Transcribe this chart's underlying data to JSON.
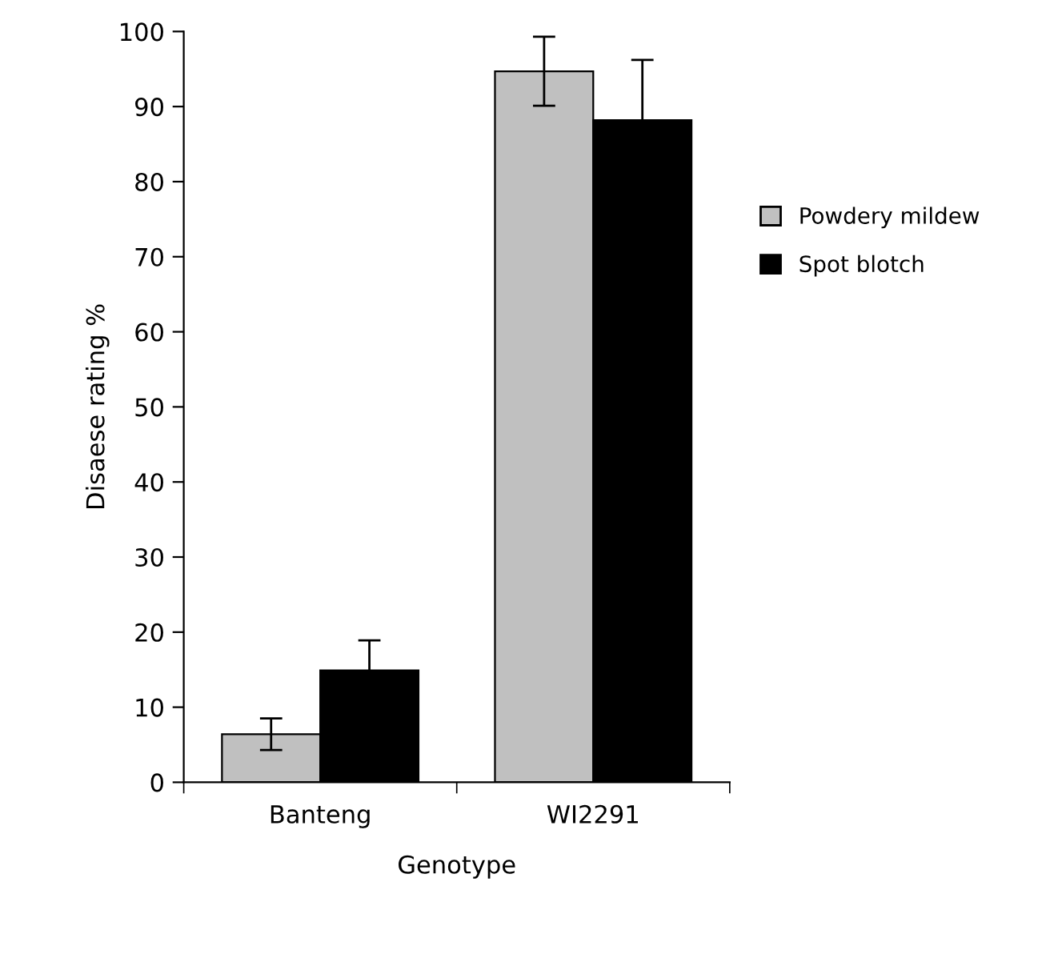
{
  "chart_data": {
    "type": "bar",
    "xlabel": "Genotype",
    "ylabel": "Disaese rating %",
    "categories": [
      "Banteng",
      "WI2291"
    ],
    "series": [
      {
        "name": "Powdery mildew",
        "color": "#c0c0c0",
        "values": [
          6.4,
          94.7
        ],
        "errors": [
          2.1,
          4.6
        ]
      },
      {
        "name": "Spot blotch",
        "color": "#000000",
        "values": [
          14.9,
          88.2
        ],
        "errors": [
          4.0,
          8.0
        ]
      }
    ],
    "ylim": [
      0,
      100
    ],
    "yticks": [
      0,
      10,
      20,
      30,
      40,
      50,
      60,
      70,
      80,
      90,
      100
    ],
    "grid": false,
    "legend": "right"
  }
}
